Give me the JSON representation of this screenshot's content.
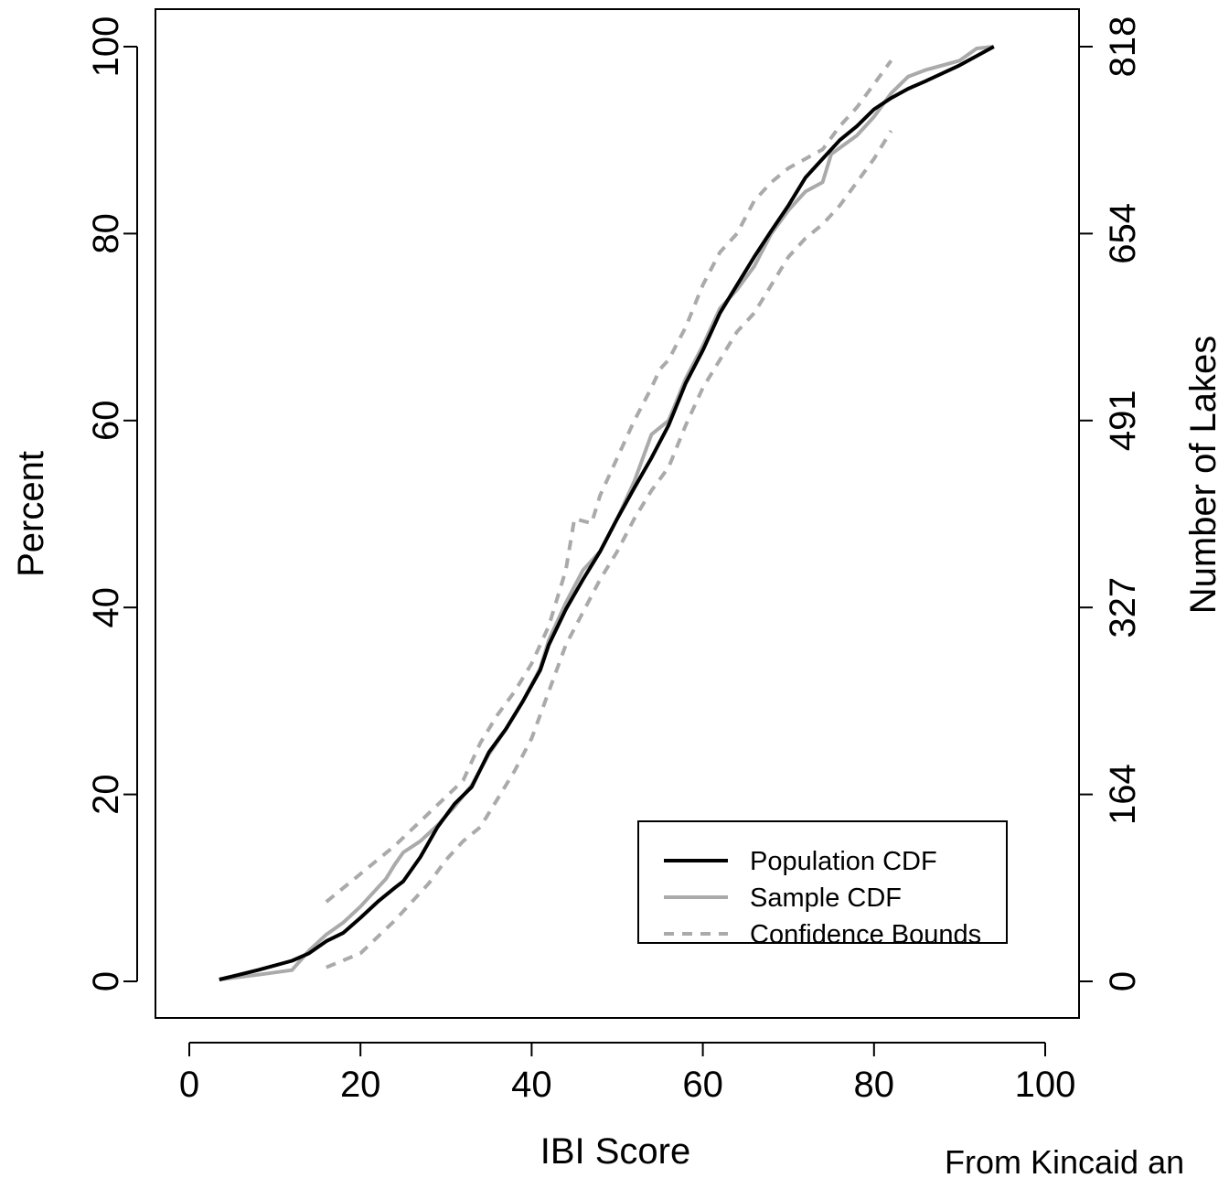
{
  "chart_data": {
    "type": "line",
    "xlabel": "IBI Score",
    "ylabel": "Percent",
    "ylabel_right": "Number of Lakes",
    "xlim": [
      0,
      100
    ],
    "ylim": [
      0,
      100
    ],
    "x_ticks": [
      "0",
      "20",
      "40",
      "60",
      "80",
      "100"
    ],
    "y_ticks": [
      "0",
      "20",
      "40",
      "60",
      "80",
      "100"
    ],
    "y_ticks_right": [
      "0",
      "164",
      "327",
      "491",
      "654",
      "818"
    ],
    "grid": false,
    "legend_position": "bottom-right",
    "legend": [
      "Population CDF",
      "Sample CDF",
      "Confidence Bounds"
    ],
    "series": [
      {
        "name": "Population CDF",
        "color": "#000000",
        "style": "solid",
        "x": [
          3.5,
          8,
          12,
          14,
          16,
          18,
          20,
          22,
          24,
          25,
          27,
          29,
          31,
          33,
          35,
          37,
          39,
          41,
          42,
          44,
          46,
          48,
          50,
          52,
          54,
          56,
          58,
          60,
          62,
          64,
          66,
          68,
          70,
          72,
          74,
          76,
          78,
          80,
          82,
          84,
          86,
          90,
          94
        ],
        "y": [
          0.2,
          1.2,
          2.2,
          3.0,
          4.3,
          5.2,
          6.8,
          8.5,
          10.0,
          10.7,
          13.3,
          16.5,
          19.0,
          20.8,
          24.5,
          27.0,
          30.0,
          33.3,
          36.0,
          39.8,
          43.0,
          46.0,
          49.5,
          52.8,
          56.0,
          59.5,
          64.0,
          67.5,
          71.5,
          74.5,
          77.5,
          80.3,
          83.0,
          86.0,
          88.0,
          90.0,
          91.5,
          93.3,
          94.5,
          95.5,
          96.3,
          98.0,
          100.0
        ]
      },
      {
        "name": "Sample CDF",
        "color": "#aaaaaa",
        "style": "solid",
        "x": [
          3.5,
          8,
          12,
          14,
          16,
          18,
          20,
          22,
          23,
          24,
          25,
          27,
          29,
          31,
          33,
          35,
          37,
          39,
          41,
          42,
          44,
          46,
          48,
          50,
          52,
          54,
          56,
          58,
          60,
          62,
          64,
          66,
          68,
          70,
          72,
          74,
          75,
          78,
          80,
          82,
          84,
          86,
          90,
          92,
          94
        ],
        "y": [
          0.2,
          0.7,
          1.2,
          3.3,
          5.0,
          6.3,
          8.0,
          10.0,
          11.0,
          12.5,
          13.8,
          15.0,
          16.7,
          18.7,
          21.0,
          24.3,
          27.0,
          30.0,
          33.5,
          36.5,
          40.5,
          44.0,
          46.0,
          49.5,
          53.5,
          58.5,
          60.0,
          64.5,
          68.0,
          72.0,
          74.0,
          76.5,
          80.0,
          82.5,
          84.5,
          85.5,
          88.5,
          90.5,
          92.5,
          95.0,
          96.8,
          97.5,
          98.5,
          99.8,
          100.0
        ]
      },
      {
        "name": "Confidence Bounds",
        "color": "#aaaaaa",
        "style": "dashed",
        "x": [
          16,
          20,
          24,
          28,
          32,
          34,
          36,
          38,
          40,
          42,
          44,
          45,
          47,
          48,
          50,
          52,
          54,
          55,
          56,
          58,
          60,
          62,
          64,
          66,
          68,
          70,
          72,
          74,
          76,
          78,
          80,
          82
        ],
        "y": [
          8.5,
          11.5,
          14.5,
          18.0,
          21.5,
          25.5,
          28.5,
          31.0,
          34.0,
          38.0,
          44.0,
          49.5,
          49.0,
          52.0,
          56.0,
          60.0,
          63.5,
          65.5,
          66.5,
          70.0,
          74.5,
          78.0,
          80.0,
          83.5,
          85.5,
          87.0,
          88.0,
          89.0,
          91.5,
          93.5,
          96.0,
          98.5
        ]
      },
      {
        "name": "Confidence Bounds",
        "color": "#aaaaaa",
        "style": "dashed",
        "x": [
          16,
          20,
          24,
          28,
          30,
          32,
          34,
          36,
          38,
          40,
          42,
          44,
          46,
          48,
          50,
          52,
          54,
          56,
          58,
          60,
          62,
          64,
          66,
          68,
          70,
          72,
          74,
          76,
          78,
          80,
          82
        ],
        "y": [
          1.5,
          3.0,
          6.5,
          10.5,
          13.0,
          15.0,
          16.5,
          19.5,
          22.5,
          26.0,
          31.0,
          36.0,
          39.5,
          43.0,
          46.0,
          49.5,
          52.5,
          55.0,
          59.5,
          63.5,
          66.5,
          69.5,
          71.5,
          74.5,
          77.5,
          79.5,
          81.0,
          83.0,
          85.5,
          88.0,
          91.0
        ]
      }
    ]
  },
  "caption": "From Kincaid an"
}
